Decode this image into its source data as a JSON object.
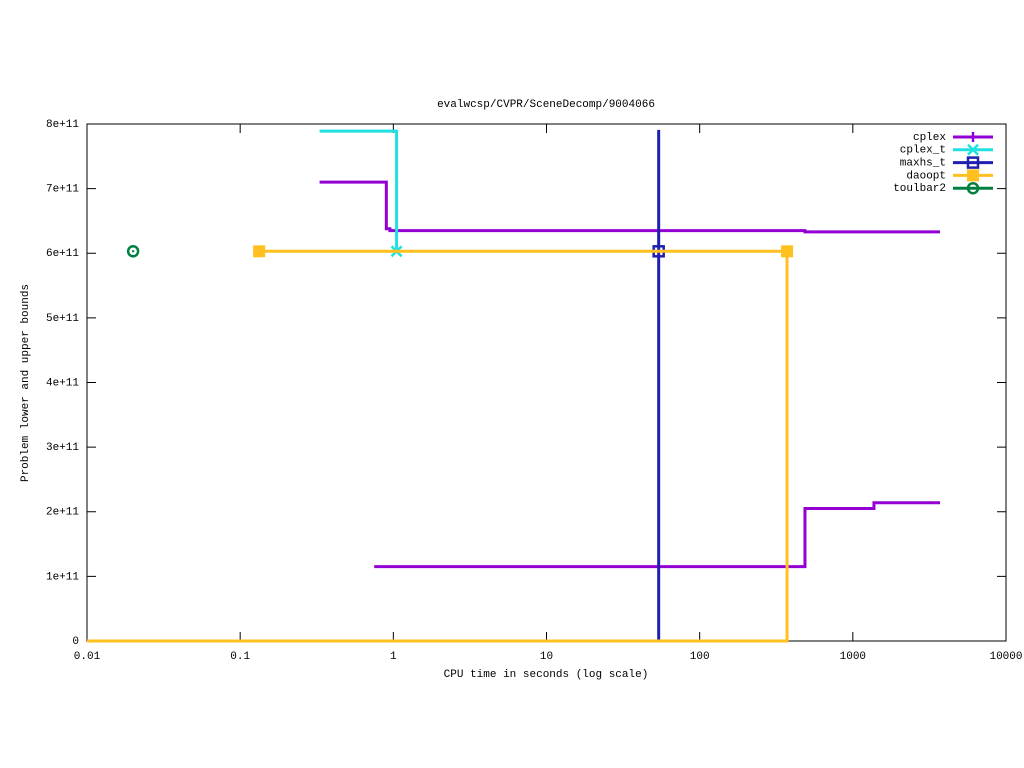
{
  "chart_data": {
    "type": "line",
    "title": "evalwcsp/CVPR/SceneDecomp/9004066",
    "x_label": "CPU time in seconds (log scale)",
    "y_label": "Problem lower and upper bounds",
    "x_log": true,
    "xlim": [
      0.01,
      10000
    ],
    "xticks": [
      0.01,
      0.1,
      1,
      10,
      100,
      1000,
      10000
    ],
    "ylim": [
      0,
      800000000000.0
    ],
    "yticks": [
      0,
      {
        "value": 100000000000.0,
        "label": "1e+11"
      },
      {
        "value": 200000000000.0,
        "label": "2e+11"
      },
      {
        "value": 300000000000.0,
        "label": "3e+11"
      },
      {
        "value": 400000000000.0,
        "label": "4e+11"
      },
      {
        "value": 500000000000.0,
        "label": "5e+11"
      },
      {
        "value": 600000000000.0,
        "label": "6e+11"
      },
      {
        "value": 700000000000.0,
        "label": "7e+11"
      },
      {
        "value": 800000000000.0,
        "label": "8e+11"
      }
    ],
    "legend": "top-right",
    "series": [
      {
        "name": "cplex",
        "color": "#9400d3",
        "marker": "plus",
        "x": [
          0.33,
          0.9,
          0.9,
          0.95,
          0.95,
          487,
          487,
          3710,
          null,
          0.75,
          487,
          487,
          1374,
          1374,
          3710
        ],
        "values": [
          710000000000.0,
          710000000000.0,
          638000000000.0,
          638000000000.0,
          635000000000.0,
          635000000000.0,
          633000000000.0,
          633000000000.0,
          null,
          115000000000.0,
          115000000000.0,
          205000000000.0,
          205000000000.0,
          214000000000.0,
          214000000000.0
        ],
        "marker_x": [],
        "marker_values": []
      },
      {
        "name": "cplex_t",
        "color": "#20e0e0",
        "marker": "cross",
        "x": [
          0.33,
          1.05,
          1.05
        ],
        "values": [
          789000000000.0,
          789000000000.0,
          603000000000.0
        ],
        "marker_x": [
          1.05
        ],
        "marker_values": [
          603000000000.0
        ]
      },
      {
        "name": "maxhs_t",
        "color": "#2020b0",
        "marker": "square",
        "x": [
          54,
          54
        ],
        "values": [
          0,
          791000000000.0
        ],
        "marker_x": [
          54
        ],
        "marker_values": [
          603000000000.0
        ]
      },
      {
        "name": "daoopt",
        "color": "#ffc020",
        "marker": "filled-square",
        "x": [
          0.01,
          372,
          372,
          0.133
        ],
        "values": [
          0,
          0,
          603000000000.0,
          603000000000.0
        ],
        "marker_x": [
          0.133,
          372
        ],
        "marker_values": [
          603000000000.0,
          603000000000.0
        ]
      },
      {
        "name": "toulbar2",
        "color": "#008040",
        "marker": "circle",
        "x": [],
        "values": [],
        "marker_x": [
          0.02
        ],
        "marker_values": [
          603000000000.0
        ]
      }
    ]
  }
}
